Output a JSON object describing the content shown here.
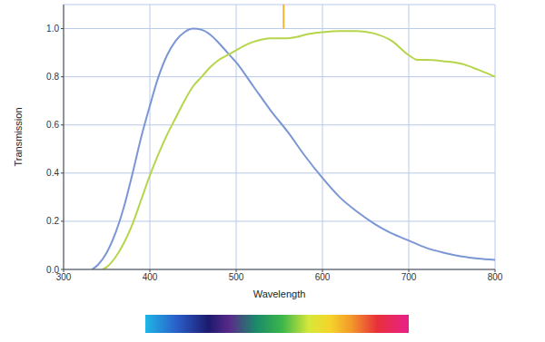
{
  "chart_data": {
    "type": "line",
    "x_label": "Wavelength",
    "y_label": "Transmission",
    "xlim": [
      300,
      800
    ],
    "xticks": [
      300,
      400,
      500,
      600,
      700,
      800
    ],
    "ylim": [
      0,
      1.1
    ],
    "yticks": [
      {
        "value": 0,
        "label": "0.0"
      },
      {
        "value": 0.2,
        "label": "0.2"
      },
      {
        "value": 0.4,
        "label": "0.4"
      },
      {
        "value": 0.6,
        "label": "0.6"
      },
      {
        "value": 0.8,
        "label": "0.8"
      },
      {
        "value": 1.0,
        "label": "1.0"
      }
    ],
    "grid": true,
    "series": [
      {
        "color": "#7b96d4",
        "x": [
          333,
          340,
          350,
          360,
          370,
          380,
          390,
          400,
          410,
          420,
          430,
          440,
          450,
          460,
          470,
          480,
          490,
          500,
          520,
          540,
          560,
          580,
          600,
          620,
          640,
          660,
          680,
          700,
          720,
          740,
          760,
          780,
          800
        ],
        "values": [
          0,
          0.02,
          0.07,
          0.15,
          0.26,
          0.4,
          0.55,
          0.68,
          0.8,
          0.89,
          0.95,
          0.985,
          1.0,
          0.995,
          0.975,
          0.94,
          0.9,
          0.86,
          0.76,
          0.66,
          0.57,
          0.47,
          0.38,
          0.3,
          0.24,
          0.19,
          0.15,
          0.12,
          0.09,
          0.07,
          0.055,
          0.045,
          0.04
        ]
      },
      {
        "color": "#b5d64a",
        "x": [
          345,
          350,
          360,
          370,
          380,
          390,
          400,
          410,
          420,
          430,
          440,
          450,
          460,
          470,
          480,
          490,
          500,
          510,
          520,
          530,
          540,
          560,
          570,
          580,
          600,
          620,
          640,
          660,
          680,
          700,
          710,
          720,
          740,
          760,
          780,
          800
        ],
        "values": [
          0,
          0.01,
          0.05,
          0.11,
          0.19,
          0.29,
          0.39,
          0.48,
          0.56,
          0.63,
          0.7,
          0.76,
          0.8,
          0.84,
          0.87,
          0.89,
          0.91,
          0.93,
          0.945,
          0.955,
          0.96,
          0.96,
          0.965,
          0.975,
          0.985,
          0.99,
          0.99,
          0.98,
          0.95,
          0.89,
          0.87,
          0.87,
          0.865,
          0.855,
          0.83,
          0.8
        ]
      }
    ],
    "reference_line": {
      "x": 555,
      "y": [
        1.0,
        1.1
      ],
      "color": "#f5b335"
    }
  }
}
